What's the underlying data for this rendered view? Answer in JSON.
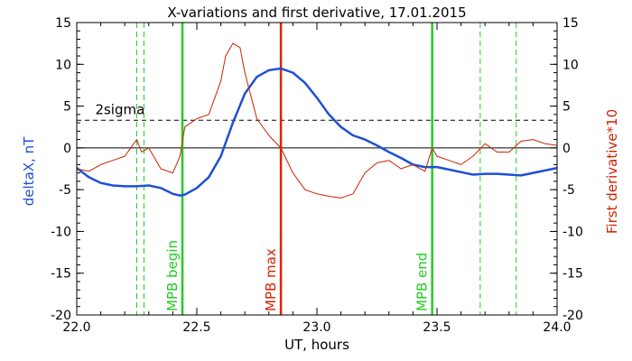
{
  "chart_data": {
    "type": "line",
    "title": "X-variations and first derivative, 17.01.2015",
    "xlabel": "UT, hours",
    "ylabel_left": "deltaX, nT",
    "ylabel_right": "First derivative*10",
    "xlim": [
      22.0,
      24.0
    ],
    "ylim": [
      -20,
      15
    ],
    "x_ticks": [
      22.0,
      22.5,
      23.0,
      23.5,
      24.0
    ],
    "x_tick_labels": [
      "22.0",
      "22.5",
      "23.0",
      "23.5",
      "24.0"
    ],
    "y_ticks": [
      -20,
      -15,
      -10,
      -5,
      0,
      5,
      10,
      15
    ],
    "y_tick_labels": [
      "-20",
      "-15",
      "-10",
      "-5",
      "0",
      "5",
      "10",
      "15"
    ],
    "grid": false,
    "colors": {
      "deltaX": "#1f4fd6",
      "derivative": "#cc2200",
      "mpb_lines": "#22cc22",
      "mpb_max": "#dd2200",
      "axes": "#000000"
    },
    "series": [
      {
        "name": "deltaX, nT",
        "axis": "left",
        "color": "#1f4fd6",
        "x": [
          22.0,
          22.05,
          22.1,
          22.15,
          22.2,
          22.25,
          22.3,
          22.35,
          22.4,
          22.43,
          22.45,
          22.5,
          22.55,
          22.6,
          22.65,
          22.7,
          22.75,
          22.8,
          22.85,
          22.9,
          22.95,
          23.0,
          23.05,
          23.1,
          23.15,
          23.2,
          23.25,
          23.3,
          23.35,
          23.4,
          23.45,
          23.5,
          23.55,
          23.6,
          23.65,
          23.7,
          23.75,
          23.8,
          23.85,
          23.9,
          23.95,
          24.0
        ],
        "y": [
          -2.4,
          -3.5,
          -4.2,
          -4.5,
          -4.6,
          -4.6,
          -4.5,
          -4.8,
          -5.5,
          -5.7,
          -5.6,
          -4.8,
          -3.5,
          -1.0,
          3.0,
          6.5,
          8.5,
          9.3,
          9.5,
          9.0,
          7.8,
          6.0,
          4.0,
          2.5,
          1.5,
          1.0,
          0.3,
          -0.5,
          -1.2,
          -2.0,
          -2.3,
          -2.3,
          -2.6,
          -2.9,
          -3.2,
          -3.1,
          -3.1,
          -3.2,
          -3.3,
          -3.0,
          -2.7,
          -2.4
        ]
      },
      {
        "name": "First derivative*10",
        "axis": "right",
        "color": "#cc2200",
        "x": [
          22.0,
          22.05,
          22.1,
          22.15,
          22.2,
          22.25,
          22.27,
          22.3,
          22.35,
          22.4,
          22.43,
          22.45,
          22.5,
          22.55,
          22.6,
          22.62,
          22.65,
          22.68,
          22.7,
          22.75,
          22.8,
          22.85,
          22.9,
          22.95,
          23.0,
          23.05,
          23.1,
          23.15,
          23.2,
          23.25,
          23.3,
          23.35,
          23.4,
          23.45,
          23.48,
          23.5,
          23.55,
          23.6,
          23.65,
          23.7,
          23.75,
          23.8,
          23.85,
          23.9,
          23.95,
          24.0
        ],
        "y": [
          -2.5,
          -2.8,
          -2.0,
          -1.5,
          -1.0,
          1.0,
          -0.5,
          0.0,
          -2.5,
          -3.0,
          -1.0,
          2.5,
          3.5,
          4.0,
          8.0,
          11.0,
          12.5,
          12.0,
          9.0,
          3.5,
          1.5,
          0.0,
          -3.0,
          -5.0,
          -5.5,
          -5.8,
          -6.0,
          -5.5,
          -3.0,
          -1.8,
          -1.5,
          -2.5,
          -2.0,
          -2.8,
          0.0,
          -1.0,
          -1.5,
          -2.0,
          -1.0,
          0.5,
          -0.5,
          -0.5,
          0.8,
          1.0,
          0.5,
          0.3
        ]
      }
    ],
    "reference_lines": [
      {
        "name": "zero-line",
        "axis": "left",
        "y": 0,
        "style": "solid",
        "color": "#000000"
      },
      {
        "name": "2sigma",
        "axis": "right",
        "y": 3.3,
        "style": "dashed",
        "color": "#000000",
        "label": "2sigma"
      }
    ],
    "vertical_lines": [
      {
        "name": "mpb-begin",
        "x": 22.44,
        "style": "solid",
        "color": "#22cc22",
        "label": "MPB begin"
      },
      {
        "name": "mpb-max",
        "x": 22.85,
        "style": "solid",
        "color": "#dd2200",
        "label": "MPB max"
      },
      {
        "name": "mpb-end",
        "x": 23.48,
        "style": "solid",
        "color": "#22cc22",
        "label": "MPB end"
      },
      {
        "name": "dashed-1",
        "x": 22.25,
        "style": "dashed",
        "color": "#22cc22",
        "label": ""
      },
      {
        "name": "dashed-2",
        "x": 22.28,
        "style": "dashed",
        "color": "#22cc22",
        "label": ""
      },
      {
        "name": "dashed-3",
        "x": 23.68,
        "style": "dashed",
        "color": "#22cc22",
        "label": ""
      },
      {
        "name": "dashed-4",
        "x": 23.83,
        "style": "dashed",
        "color": "#22cc22",
        "label": ""
      }
    ]
  }
}
